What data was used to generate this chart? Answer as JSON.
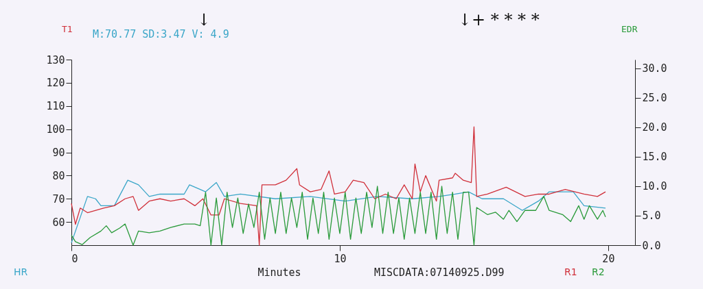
{
  "chart_data": {
    "type": "line",
    "ylabel": "T1",
    "y2label": "EDR",
    "xlabel": "Minutes",
    "annotations": [
      "M:70.77 SD:3.47 V: 4.9",
      "MISCDATA:07140925.D99",
      "↓",
      "↓+ * * * *"
    ],
    "xlim": [
      0,
      21
    ],
    "xticks": [
      0,
      10,
      20
    ],
    "ylim": [
      50,
      130
    ],
    "yticks": [
      60,
      70,
      80,
      90,
      100,
      110,
      120,
      130
    ],
    "y2lim": [
      0,
      31.5
    ],
    "y2ticks": [
      {
        "value": 0,
        "label": "0.0"
      },
      {
        "value": 5,
        "label": "5.0"
      },
      {
        "value": 10,
        "label": "10.0"
      },
      {
        "value": 15,
        "label": "15.0"
      },
      {
        "value": 20,
        "label": "20.0"
      },
      {
        "value": 25,
        "label": "25.0"
      },
      {
        "value": 30,
        "label": "30.0"
      }
    ],
    "grid": false,
    "legend": "bottom",
    "marker": "none",
    "line_style": "solid",
    "series": [
      {
        "name": "HR",
        "color": "#3aa6c8",
        "x": [
          0.0,
          0.6,
          0.9,
          1.1,
          1.6,
          2.1,
          2.5,
          2.9,
          3.3,
          3.7,
          4.2,
          4.4,
          4.8,
          5.0,
          5.4,
          5.7,
          6.3,
          7.6,
          8.9,
          10.2,
          11.4,
          12.7,
          13.7,
          14.3,
          14.8,
          15.3,
          16.1,
          16.8,
          17.4,
          17.8,
          18.7,
          19.1,
          19.9
        ],
        "values": [
          51,
          71,
          70,
          67,
          67,
          78,
          76,
          71,
          72,
          72,
          72,
          76,
          74,
          73,
          77,
          71,
          72,
          70,
          71,
          69,
          71,
          70,
          71,
          72,
          73,
          70,
          70,
          65,
          69,
          73,
          73,
          67,
          66
        ]
      },
      {
        "name": "R1",
        "color": "#d0303a",
        "x": [
          0.0,
          0.15,
          0.33,
          0.6,
          1.2,
          1.6,
          2.0,
          2.3,
          2.5,
          2.9,
          3.3,
          3.7,
          4.2,
          4.6,
          4.9,
          5.2,
          5.5,
          5.7,
          6.3,
          6.9,
          7.0,
          7.1,
          7.6,
          8.0,
          8.4,
          8.5,
          8.9,
          9.3,
          9.6,
          9.8,
          10.2,
          10.5,
          10.9,
          11.3,
          11.7,
          12.1,
          12.4,
          12.7,
          12.8,
          13.0,
          13.2,
          13.6,
          13.7,
          14.2,
          14.3,
          14.6,
          14.9,
          15.0,
          15.1,
          15.5,
          16.2,
          16.9,
          17.4,
          17.8,
          18.4,
          19.1,
          19.6,
          19.9
        ],
        "values": [
          68,
          59,
          66,
          64,
          66,
          67,
          70,
          71,
          65,
          69,
          70,
          69,
          70,
          67,
          70,
          63,
          63,
          70,
          68,
          67,
          50,
          76,
          76,
          78,
          83,
          76,
          73,
          74,
          82,
          72,
          73,
          78,
          77,
          70,
          72,
          70,
          76,
          70,
          85,
          73,
          80,
          69,
          78,
          79,
          81,
          78,
          77,
          101,
          71,
          72,
          75,
          71,
          72,
          72,
          74,
          72,
          71,
          73
        ]
      },
      {
        "name": "R2",
        "color": "#2a9a3a",
        "axis": "y2",
        "x": [
          0.0,
          0.15,
          0.4,
          0.7,
          1.1,
          1.3,
          1.5,
          1.8,
          2.0,
          2.3,
          2.5,
          2.9,
          3.3,
          3.7,
          4.2,
          4.6,
          4.8,
          5.0,
          5.2,
          5.4,
          5.6,
          5.8,
          6.0,
          6.2,
          6.4,
          6.6,
          6.8,
          7.0,
          7.2,
          7.4,
          7.6,
          7.8,
          8.0,
          8.2,
          8.4,
          8.6,
          8.8,
          9.0,
          9.2,
          9.4,
          9.6,
          9.8,
          10.0,
          10.2,
          10.4,
          10.6,
          10.8,
          11.0,
          11.2,
          11.4,
          11.6,
          11.8,
          12.0,
          12.2,
          12.4,
          12.6,
          12.8,
          13.0,
          13.2,
          13.4,
          13.6,
          13.8,
          14.0,
          14.2,
          14.4,
          14.6,
          14.8,
          15.0,
          15.1,
          15.5,
          15.8,
          16.1,
          16.3,
          16.6,
          16.9,
          17.3,
          17.6,
          17.8,
          18.3,
          18.6,
          18.9,
          19.1,
          19.3,
          19.6,
          19.8,
          19.9
        ],
        "values": [
          1.7,
          0.6,
          0.1,
          1.3,
          2.4,
          3.3,
          2.1,
          2.9,
          3.6,
          0,
          2.4,
          2.1,
          2.4,
          3,
          3.6,
          3.6,
          3.3,
          9,
          0,
          8,
          0,
          9,
          3,
          8,
          2,
          7,
          3,
          9,
          1,
          8,
          2,
          9,
          2,
          8,
          3,
          9,
          1,
          8,
          2,
          9,
          1,
          8,
          2,
          9,
          1,
          8,
          2,
          9,
          3,
          10,
          2,
          9,
          2,
          8,
          1,
          8,
          2,
          9,
          2,
          9,
          1,
          10,
          2,
          9,
          1,
          9,
          9,
          0,
          6.4,
          5.2,
          5.6,
          4.4,
          5.9,
          4,
          5.9,
          5.9,
          8.3,
          5.9,
          5.2,
          4,
          6.7,
          4.4,
          6.7,
          4.4,
          5.9,
          4.8
        ]
      }
    ]
  }
}
